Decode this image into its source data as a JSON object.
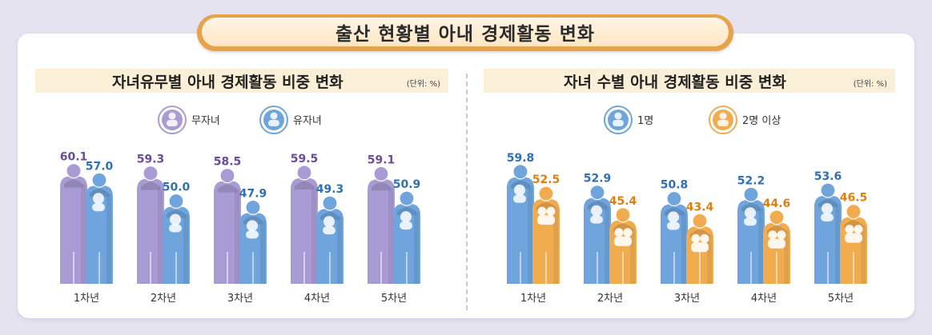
{
  "main_title": "출산 현황별 아내 경제활동 변화",
  "left": {
    "title": "자녀유무별 아내 경제활동 비중 변화",
    "unit": "(단위: %)"
  },
  "right": {
    "title": "자녀 수별 아내 경제활동 비중 변화",
    "unit": "(단위: %)"
  },
  "colors": {
    "childless": "#a99bd3",
    "childless_label": "#6a4c9c",
    "with_child": "#6fa5dc",
    "with_child_label": "#2f6fb6",
    "one_child": "#6fa5dc",
    "one_child_label": "#2f6fb6",
    "two_plus": "#f2ac50",
    "two_plus_label": "#e07f10"
  },
  "chart_data": [
    {
      "type": "bar",
      "title": "자녀유무별 아내 경제활동 비중 변화",
      "unit": "(단위: %)",
      "categories": [
        "1차년",
        "2차년",
        "3차년",
        "4차년",
        "5차년"
      ],
      "series": [
        {
          "name": "무자녀",
          "values": [
            60.1,
            59.3,
            58.5,
            59.5,
            59.1
          ]
        },
        {
          "name": "유자녀",
          "values": [
            57.0,
            50.0,
            47.9,
            49.3,
            50.9
          ]
        }
      ],
      "value_labels": [
        [
          "60.1",
          "59.3",
          "58.5",
          "59.5",
          "59.1"
        ],
        [
          "57.0",
          "50.0",
          "47.9",
          "49.3",
          "50.9"
        ]
      ],
      "legend": "top-left",
      "grid": false
    },
    {
      "type": "bar",
      "title": "자녀 수별 아내 경제활동 비중 변화",
      "unit": "(단위: %)",
      "categories": [
        "1차년",
        "2차년",
        "3차년",
        "4차년",
        "5차년"
      ],
      "series": [
        {
          "name": "1명",
          "values": [
            59.8,
            52.9,
            50.8,
            52.2,
            53.6
          ]
        },
        {
          "name": "2명 이상",
          "values": [
            52.5,
            45.4,
            43.4,
            44.6,
            46.5
          ]
        }
      ],
      "value_labels": [
        [
          "59.8",
          "52.9",
          "50.8",
          "52.2",
          "53.6"
        ],
        [
          "52.5",
          "45.4",
          "43.4",
          "44.6",
          "46.5"
        ]
      ],
      "legend": "top-left",
      "grid": false
    }
  ]
}
